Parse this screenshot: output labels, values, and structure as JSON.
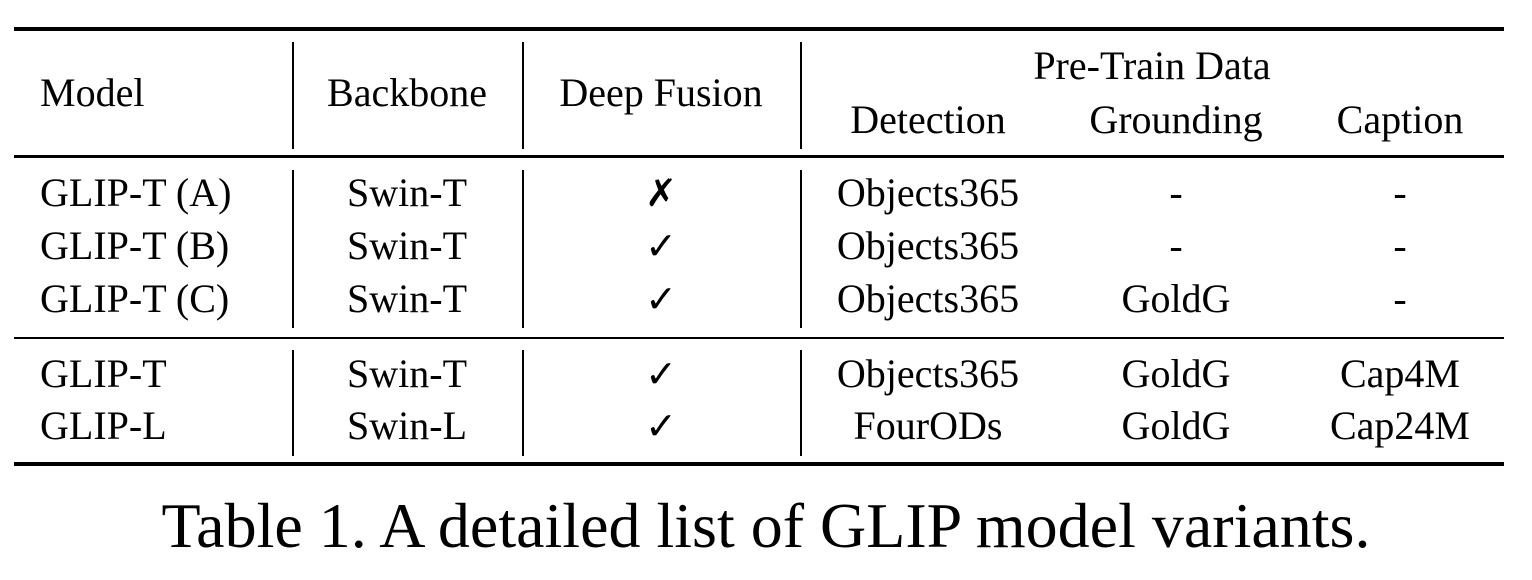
{
  "header": {
    "model": "Model",
    "backbone": "Backbone",
    "deep_fusion": "Deep Fusion",
    "pretrain_group": "Pre-Train Data",
    "detection": "Detection",
    "grounding": "Grounding",
    "caption": "Caption"
  },
  "rows": [
    {
      "model": "GLIP-T (A)",
      "backbone": "Swin-T",
      "fusion": "✗",
      "detection": "Objects365",
      "grounding": "-",
      "caption": "-"
    },
    {
      "model": "GLIP-T (B)",
      "backbone": "Swin-T",
      "fusion": "✓",
      "detection": "Objects365",
      "grounding": "-",
      "caption": "-"
    },
    {
      "model": "GLIP-T (C)",
      "backbone": "Swin-T",
      "fusion": "✓",
      "detection": "Objects365",
      "grounding": "GoldG",
      "caption": "-"
    },
    {
      "model": "GLIP-T",
      "backbone": "Swin-T",
      "fusion": "✓",
      "detection": "Objects365",
      "grounding": "GoldG",
      "caption": "Cap4M"
    },
    {
      "model": "GLIP-L",
      "backbone": "Swin-L",
      "fusion": "✓",
      "detection": "FourODs",
      "grounding": "GoldG",
      "caption": "Cap24M"
    }
  ],
  "table_caption": "Table 1. A detailed list of GLIP model variants."
}
